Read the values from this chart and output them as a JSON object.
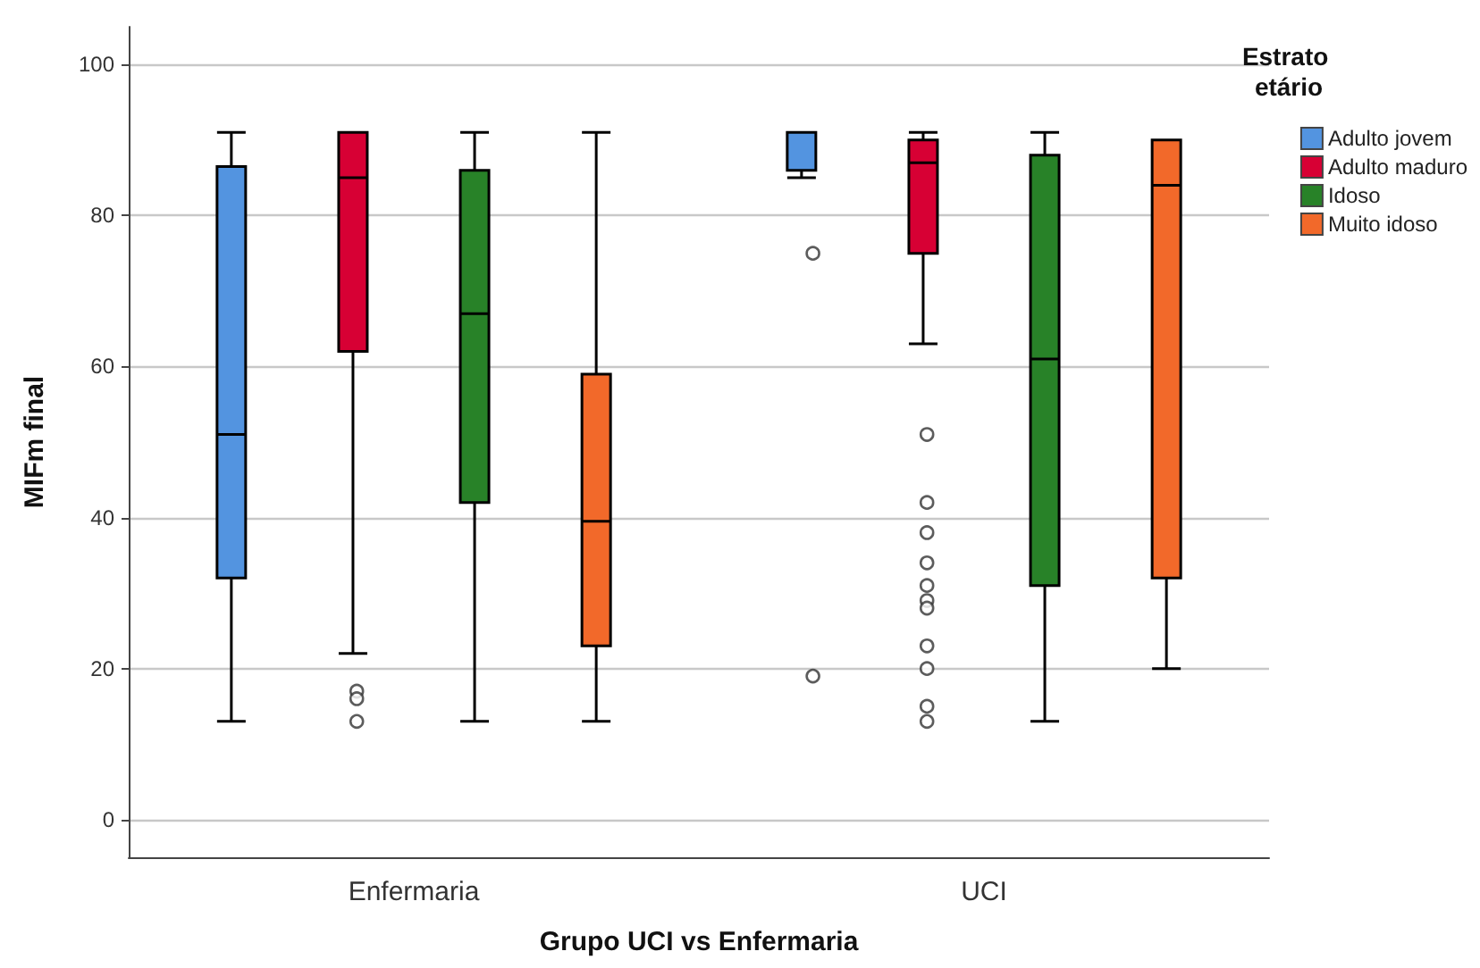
{
  "chart_data": {
    "type": "box",
    "xlabel": "Grupo UCI vs Enfermaria",
    "ylabel": "MIFm final",
    "legend_title": "Estrato etário",
    "categories": [
      "Enfermaria",
      "UCI"
    ],
    "series": [
      {
        "name": "Adulto jovem",
        "color": "#5394e0",
        "boxes": [
          {
            "low": 13,
            "q1": 32,
            "median": 51,
            "q3": 86.5,
            "high": 91
          },
          {
            "low": 85,
            "q1": 86,
            "median": 91,
            "q3": 91,
            "high": 91,
            "outliers": [
              75,
              19
            ]
          }
        ]
      },
      {
        "name": "Adulto maduro",
        "color": "#d70034",
        "boxes": [
          {
            "low": 22,
            "q1": 62,
            "median": 85,
            "q3": 91,
            "high": 91,
            "outliers": [
              17,
              16,
              13
            ]
          },
          {
            "low": 63,
            "q1": 75,
            "median": 87,
            "q3": 90,
            "high": 91,
            "outliers": [
              51,
              42,
              38,
              34,
              31,
              29,
              28,
              23,
              20,
              15,
              13
            ]
          }
        ]
      },
      {
        "name": "Idoso",
        "color": "#288228",
        "boxes": [
          {
            "low": 13,
            "q1": 42,
            "median": 67,
            "q3": 86,
            "high": 91
          },
          {
            "low": 13,
            "q1": 31,
            "median": 61,
            "q3": 88,
            "high": 91
          }
        ]
      },
      {
        "name": "Muito idoso",
        "color": "#f2692a",
        "boxes": [
          {
            "low": 13,
            "q1": 23,
            "median": 39.5,
            "q3": 59,
            "high": 91
          },
          {
            "low": 20,
            "q1": 32,
            "median": 84,
            "q3": 90,
            "high": 90
          }
        ]
      }
    ],
    "ylim": [
      -5,
      105
    ],
    "yticks": [
      0,
      20,
      40,
      60,
      80,
      100
    ],
    "grid": "y",
    "legend": "top right"
  }
}
